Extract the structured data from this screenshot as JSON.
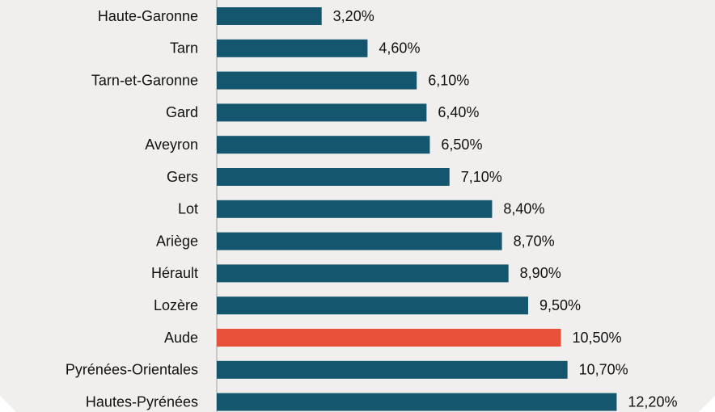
{
  "chart_data": {
    "type": "barh",
    "categories": [
      "Haute-Garonne",
      "Tarn",
      "Tarn-et-Garonne",
      "Gard",
      "Aveyron",
      "Gers",
      "Lot",
      "Ariège",
      "Hérault",
      "Lozère",
      "Aude",
      "Pyrénées-Orientales",
      "Hautes-Pyrénées"
    ],
    "values": [
      3.2,
      4.6,
      6.1,
      6.4,
      6.5,
      7.1,
      8.4,
      8.7,
      8.9,
      9.5,
      10.5,
      10.7,
      12.2
    ],
    "value_labels": [
      "3,20%",
      "4,60%",
      "6,10%",
      "6,40%",
      "6,50%",
      "7,10%",
      "8,40%",
      "8,70%",
      "8,90%",
      "9,50%",
      "10,50%",
      "10,70%",
      "12,20%"
    ],
    "colors": [
      "#14566e",
      "#14566e",
      "#14566e",
      "#14566e",
      "#14566e",
      "#14566e",
      "#14566e",
      "#14566e",
      "#14566e",
      "#14566e",
      "#e8503a",
      "#14566e",
      "#14566e"
    ],
    "xlim": [
      0,
      15.2
    ]
  }
}
